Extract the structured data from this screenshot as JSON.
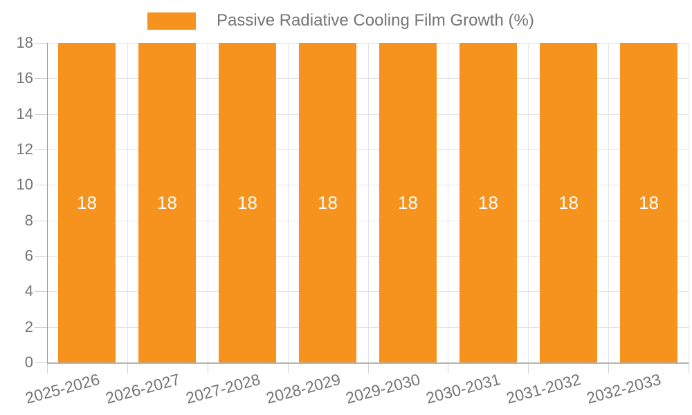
{
  "chart_data": {
    "type": "bar",
    "title": "Passive Radiative Cooling Film Growth (%)",
    "categories": [
      "2025-2026",
      "2026-2027",
      "2027-2028",
      "2028-2029",
      "2029-2030",
      "2030-2031",
      "2031-2032",
      "2032-2033"
    ],
    "values": [
      18,
      18,
      18,
      18,
      18,
      18,
      18,
      18
    ],
    "bar_labels": [
      "18",
      "18",
      "18",
      "18",
      "18",
      "18",
      "18",
      "18"
    ],
    "xlabel": "",
    "ylabel": "",
    "ylim": [
      0,
      18
    ],
    "yticks": [
      0,
      2,
      4,
      6,
      8,
      10,
      12,
      14,
      16,
      18
    ],
    "grid": true,
    "legend_position": "top-center",
    "colors": {
      "bar": "#f6921e",
      "bar_value_text": "#ffffff",
      "gridline": "#e4e4e4",
      "tick_mark": "#d2d2d2",
      "y_axis_line": "#999999",
      "x_axis_line": "#b3b3b3",
      "text": "#757575",
      "background": "#ffffff"
    }
  }
}
